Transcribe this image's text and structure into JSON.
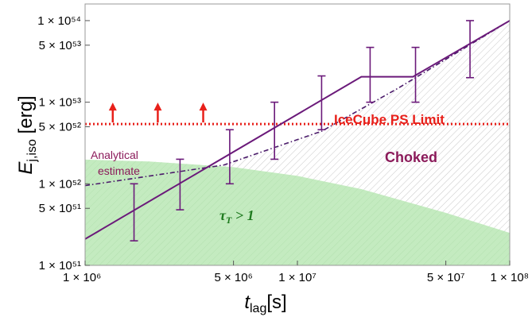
{
  "chart_data": {
    "type": "line",
    "xlabel": {
      "main": "t",
      "sub": "lag",
      "unit": "[s]"
    },
    "ylabel": {
      "main": "E",
      "sub": "j,iso",
      "unit": " [erg]"
    },
    "xscale": "log",
    "yscale": "log",
    "xlim": [
      1000000,
      100000000
    ],
    "ylim": [
      1e+51,
      1.6e+54
    ],
    "xticks": [
      {
        "value": 1000000,
        "label": "1 × 10⁶"
      },
      {
        "value": 5000000,
        "label": "5 × 10⁶"
      },
      {
        "value": 10000000,
        "label": "1 × 10⁷"
      },
      {
        "value": 50000000,
        "label": "5 × 10⁷"
      },
      {
        "value": 100000000,
        "label": "1 × 10⁸"
      }
    ],
    "yticks": [
      {
        "value": 1e+51,
        "label": "1 × 10⁵¹"
      },
      {
        "value": 5e+51,
        "label": "5 × 10⁵¹"
      },
      {
        "value": 1e+52,
        "label": "1 × 10⁵²"
      },
      {
        "value": 5e+52,
        "label": "5 × 10⁵²"
      },
      {
        "value": 1e+53,
        "label": "1 × 10⁵³"
      },
      {
        "value": 5e+53,
        "label": "5 × 10⁵³"
      },
      {
        "value": 1e+54,
        "label": "1 × 10⁵⁴"
      }
    ],
    "series": [
      {
        "style": "solid",
        "color": "#6b1a7a",
        "points": [
          [
            1000000,
            2.1e+51
          ],
          [
            20000000,
            2.05e+53
          ],
          [
            35000000,
            2.05e+53
          ],
          [
            100000000,
            1e+54
          ]
        ]
      },
      {
        "style": "dash-dot",
        "color": "#4a1a6a",
        "points": [
          [
            1000000,
            9.5e+51
          ],
          [
            4500000,
            1.7e+52
          ],
          [
            13000000,
            4.4e+52
          ],
          [
            30000000,
            1.5e+53
          ],
          [
            100000000,
            1e+54
          ]
        ]
      }
    ],
    "error_bars": [
      {
        "x": 1700000,
        "low": 2e+51,
        "high": 1e+52
      },
      {
        "x": 2800000,
        "low": 4.8e+51,
        "high": 2e+52
      },
      {
        "x": 4800000,
        "low": 1e+52,
        "high": 4.6e+52
      },
      {
        "x": 7800000,
        "low": 2e+52,
        "high": 1e+53
      },
      {
        "x": 13000000,
        "low": 4.6e+52,
        "high": 2.1e+53
      },
      {
        "x": 22000000,
        "low": 1e+53,
        "high": 4.7e+53
      },
      {
        "x": 36000000,
        "low": 1e+53,
        "high": 4.7e+53
      },
      {
        "x": 65000000,
        "low": 2e+53,
        "high": 1e+54
      }
    ],
    "limit_line": {
      "y": 5.4e+52,
      "color": "#e8201a",
      "style": "dotted"
    },
    "arrows_x": [
      1350000,
      2200000,
      3600000
    ],
    "green_region_boundary": [
      [
        1000000,
        1.98e+52
      ],
      [
        2000000,
        1.88e+52
      ],
      [
        5000000,
        1.6e+52
      ],
      [
        10000000,
        1.25e+52
      ],
      [
        20000000,
        8.6e+51
      ],
      [
        50000000,
        4.4e+51
      ],
      [
        100000000,
        2.5e+51
      ]
    ],
    "annotations": {
      "analytical": [
        "Analytical",
        "estimate"
      ],
      "icecube": "IceCube PS Limit",
      "choked": "Choked",
      "tau": "τT > 1"
    },
    "colors": {
      "frame": "#999999",
      "green_fill": "#c4ebc0",
      "hatch": "#c8c8c8",
      "solid_line": "#6b1a7a",
      "dashdot_line": "#4a1a6a",
      "error_bar": "#6b1a7a",
      "limit": "#e8201a"
    }
  }
}
